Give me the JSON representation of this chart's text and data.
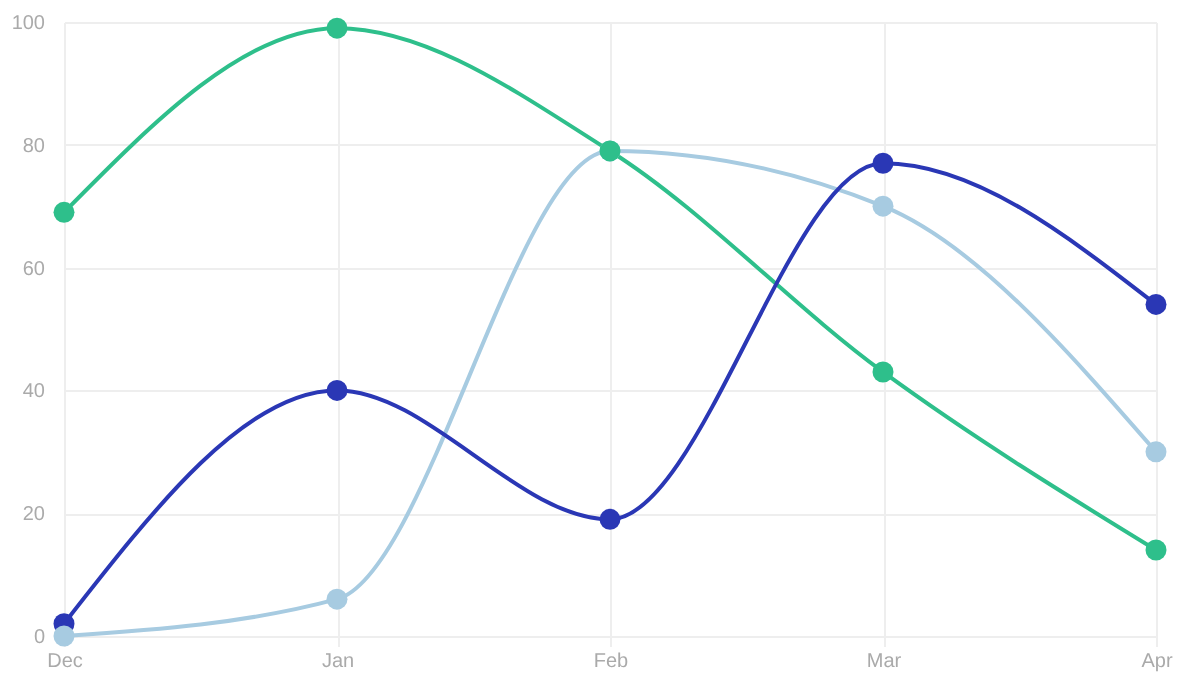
{
  "chart_data": {
    "type": "line",
    "categories": [
      "Dec",
      "Jan",
      "Feb",
      "Mar",
      "Apr"
    ],
    "series": [
      {
        "color": "#2ebf8b",
        "values": [
          69,
          99,
          79,
          43,
          14
        ]
      },
      {
        "color": "#a7cbe1",
        "values": [
          0,
          6,
          79,
          70,
          30
        ]
      },
      {
        "color": "#2a37b5",
        "values": [
          2,
          40,
          19,
          77,
          54
        ]
      }
    ],
    "ylim": [
      0,
      100
    ],
    "yticks": [
      0,
      20,
      40,
      60,
      80,
      100
    ],
    "grid": true,
    "marker": "circle",
    "line_style": "solid"
  }
}
